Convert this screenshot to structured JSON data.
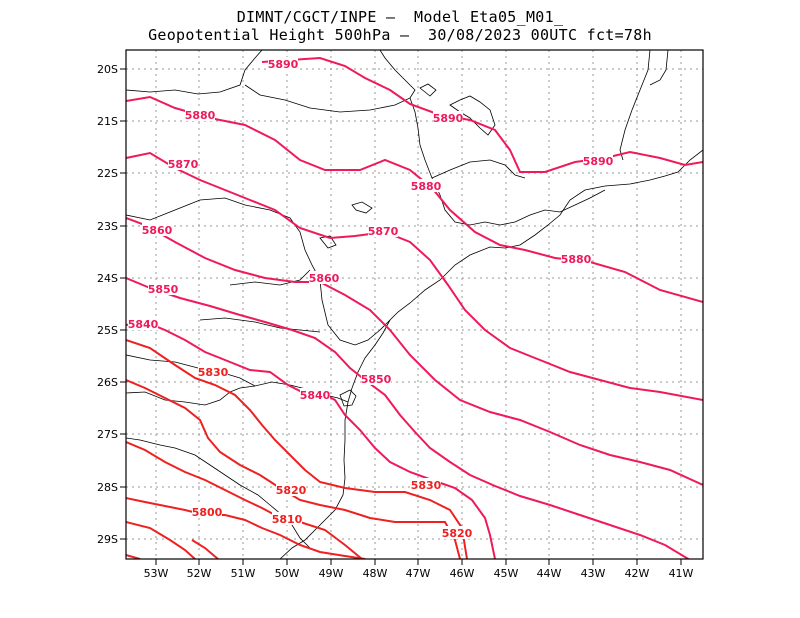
{
  "header": {
    "line1": "DIMNT/CGCT/INPE –  Model Eta05_M01_",
    "line2": "Geopotential Height 500hPa –  30/08/2023 00UTC fct=78h"
  },
  "map": {
    "lon_labels": [
      "53W",
      "52W",
      "51W",
      "50W",
      "49W",
      "48W",
      "47W",
      "46W",
      "45W",
      "44W",
      "43W",
      "42W",
      "41W"
    ],
    "lat_labels": [
      "20S",
      "21S",
      "22S",
      "23S",
      "24S",
      "25S",
      "26S",
      "27S",
      "28S",
      "29S"
    ],
    "contour_colors": {
      "warm": "#ee1a5a",
      "cold": "#ee2020"
    },
    "contour_labels": [
      "5890",
      "5890",
      "5890",
      "5880",
      "5880",
      "5880",
      "5870",
      "5870",
      "5860",
      "5860",
      "5850",
      "5850",
      "5840",
      "5840",
      "5830",
      "5830",
      "5820",
      "5820",
      "5810",
      "5800"
    ]
  }
}
